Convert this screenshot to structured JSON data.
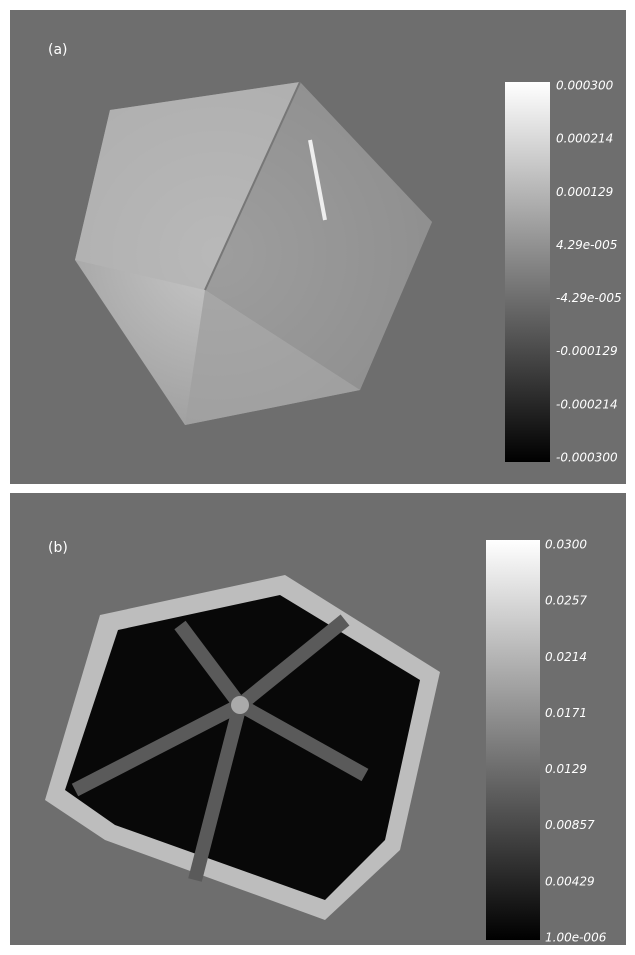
{
  "panels": [
    {
      "label": "(a)",
      "colorbar": [
        "0.000300",
        "0.000214",
        "0.000129",
        "4.29e-005",
        "-4.29e-005",
        "-0.000129",
        "-0.000214",
        "-0.000300"
      ]
    },
    {
      "label": "(b)",
      "colorbar": [
        "0.0300",
        "0.0257",
        "0.0214",
        "0.0171",
        "0.0129",
        "0.00857",
        "0.00429",
        "1.00e-006"
      ]
    }
  ]
}
